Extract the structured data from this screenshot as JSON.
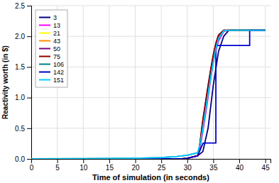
{
  "chart_data": {
    "type": "line",
    "xlabel": "Time of simulation (in seconds)",
    "ylabel": "Reactivity worth (in $)",
    "xlim": [
      0,
      46
    ],
    "ylim": [
      0,
      2.5
    ],
    "xticks": [
      0,
      5,
      10,
      15,
      20,
      25,
      30,
      35,
      40,
      45
    ],
    "yticks": [
      {
        "value": 0,
        "label": "0.0"
      },
      0.5,
      {
        "value": 1.0,
        "label": "1.0"
      },
      1.5,
      {
        "value": 2.0,
        "label": "2.0"
      },
      2.5
    ],
    "grid": true,
    "legend": "upper left",
    "series": [
      {
        "name": "3",
        "color": "#000080",
        "x": [
          0,
          29,
          30,
          31,
          32,
          33,
          34,
          35,
          36,
          37,
          38,
          45
        ],
        "values": [
          0.0,
          0.0,
          0.01,
          0.03,
          0.05,
          0.12,
          0.5,
          1.2,
          1.75,
          2.0,
          2.1,
          2.1
        ]
      },
      {
        "name": "13",
        "color": "#ff00ff",
        "x": [
          0,
          29,
          30,
          31,
          32,
          32.5,
          33,
          33.5,
          34,
          34.5,
          35,
          36,
          37,
          38,
          45
        ],
        "values": [
          0.0,
          0.0,
          0.01,
          0.03,
          0.05,
          0.2,
          0.45,
          0.72,
          1.0,
          1.3,
          1.6,
          1.92,
          2.08,
          2.1,
          2.1
        ]
      },
      {
        "name": "21",
        "color": "#ffff00",
        "x": [
          0,
          29,
          30,
          31,
          32,
          32.3,
          32.7,
          33,
          33.5,
          34,
          34.5,
          35,
          35.5,
          36,
          37,
          38,
          45
        ],
        "values": [
          0.0,
          0.0,
          0.01,
          0.03,
          0.05,
          0.15,
          0.4,
          0.6,
          0.85,
          1.1,
          1.38,
          1.64,
          1.85,
          1.98,
          2.09,
          2.1,
          2.1
        ]
      },
      {
        "name": "43",
        "color": "#ff8c00",
        "x": [
          0,
          29,
          30,
          31,
          32,
          32.3,
          32.7,
          33,
          33.5,
          34,
          34.5,
          35,
          35.5,
          36,
          37,
          38,
          45
        ],
        "values": [
          0.0,
          0.0,
          0.01,
          0.03,
          0.05,
          0.15,
          0.4,
          0.6,
          0.88,
          1.15,
          1.42,
          1.67,
          1.87,
          2.0,
          2.1,
          2.1,
          2.1
        ]
      },
      {
        "name": "50",
        "color": "#800080",
        "x": [
          0,
          29,
          30,
          31,
          32,
          32.3,
          32.7,
          33,
          33.5,
          34,
          34.5,
          35,
          35.5,
          36,
          37,
          38,
          45
        ],
        "values": [
          0.0,
          0.0,
          0.01,
          0.03,
          0.05,
          0.15,
          0.42,
          0.62,
          0.9,
          1.17,
          1.44,
          1.68,
          1.88,
          2.01,
          2.1,
          2.1,
          2.1
        ]
      },
      {
        "name": "75",
        "color": "#8b0000",
        "x": [
          0,
          29,
          30,
          31,
          32,
          32.3,
          32.7,
          33,
          33.5,
          34,
          34.5,
          35,
          35.5,
          36,
          37,
          38,
          45
        ],
        "values": [
          0.0,
          0.0,
          0.01,
          0.03,
          0.05,
          0.16,
          0.44,
          0.64,
          0.92,
          1.2,
          1.46,
          1.7,
          1.89,
          2.02,
          2.1,
          2.1,
          2.1
        ]
      },
      {
        "name": "106",
        "color": "#008080",
        "x": [
          0,
          10,
          20,
          25,
          28,
          30,
          31,
          32,
          32.5,
          33,
          33.5,
          34,
          34.5,
          35,
          35.5,
          36,
          37,
          38,
          45
        ],
        "values": [
          0.0,
          0.003,
          0.01,
          0.02,
          0.04,
          0.06,
          0.08,
          0.1,
          0.25,
          0.5,
          0.78,
          1.05,
          1.33,
          1.58,
          1.8,
          1.96,
          2.09,
          2.1,
          2.1
        ]
      },
      {
        "name": "142",
        "color": "#0000cd",
        "x": [
          0,
          29,
          30,
          31,
          32,
          32.5,
          33,
          33.0,
          33.2,
          33.5,
          33.5,
          35.5,
          35.5,
          36,
          37,
          38,
          39,
          40,
          41,
          42,
          42.0,
          43,
          45
        ],
        "values": [
          0.0,
          0.0,
          0.01,
          0.03,
          0.05,
          0.15,
          0.25,
          0.25,
          0.26,
          0.26,
          0.26,
          0.26,
          1.85,
          1.85,
          1.85,
          1.85,
          1.85,
          1.85,
          1.85,
          1.85,
          2.1,
          2.1,
          2.1
        ]
      },
      {
        "name": "151",
        "color": "#00ccff",
        "x": [
          0,
          10,
          20,
          25,
          28,
          30,
          31,
          32,
          32.5,
          33,
          33.5,
          34,
          34.5,
          35,
          35.5,
          36,
          37,
          38,
          45
        ],
        "values": [
          0.0,
          0.003,
          0.01,
          0.02,
          0.04,
          0.06,
          0.08,
          0.1,
          0.25,
          0.5,
          0.78,
          1.05,
          1.33,
          1.58,
          1.8,
          1.96,
          2.09,
          2.1,
          2.1
        ]
      }
    ]
  }
}
